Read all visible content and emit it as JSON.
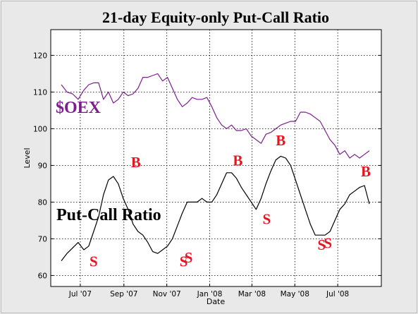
{
  "chart_data": {
    "type": "line",
    "title": "21-day Equity-only Put-Call Ratio",
    "xlabel": "Date",
    "ylabel": "Level",
    "ylim": [
      57,
      127
    ],
    "x_ticks": [
      "Jul '07",
      "Sep '07",
      "Nov '07",
      "Jan '08",
      "Mar '08",
      "May '08",
      "Jul '08"
    ],
    "y_ticks": [
      60,
      70,
      80,
      90,
      100,
      110,
      120
    ],
    "grid": true,
    "colors": {
      "oex": "#7b1f8c",
      "pcr": "#000000",
      "signal": "#e8141e",
      "background": "#e9e9e9",
      "plot": "#ffffff"
    },
    "series": [
      {
        "name": "$OEX",
        "key": "oex",
        "x": [
          "2007-06-04",
          "2007-06-12",
          "2007-06-20",
          "2007-06-28",
          "2007-07-06",
          "2007-07-13",
          "2007-07-20",
          "2007-07-27",
          "2007-08-03",
          "2007-08-10",
          "2007-08-17",
          "2007-08-24",
          "2007-08-31",
          "2007-09-07",
          "2007-09-14",
          "2007-09-21",
          "2007-09-28",
          "2007-10-05",
          "2007-10-12",
          "2007-10-19",
          "2007-10-26",
          "2007-11-02",
          "2007-11-09",
          "2007-11-16",
          "2007-11-23",
          "2007-11-30",
          "2007-12-07",
          "2007-12-14",
          "2007-12-21",
          "2007-12-28",
          "2008-01-04",
          "2008-01-11",
          "2008-01-18",
          "2008-01-25",
          "2008-02-01",
          "2008-02-08",
          "2008-02-15",
          "2008-02-22",
          "2008-02-29",
          "2008-03-07",
          "2008-03-14",
          "2008-03-21",
          "2008-03-28",
          "2008-04-04",
          "2008-04-11",
          "2008-04-18",
          "2008-04-25",
          "2008-05-02",
          "2008-05-09",
          "2008-05-16",
          "2008-05-23",
          "2008-05-30",
          "2008-06-06",
          "2008-06-13",
          "2008-06-20",
          "2008-06-27",
          "2008-07-04",
          "2008-07-11",
          "2008-07-18",
          "2008-07-25",
          "2008-08-01",
          "2008-08-08",
          "2008-08-15"
        ],
        "values": [
          112,
          110,
          109.5,
          108,
          110.5,
          112,
          112.5,
          112.5,
          108,
          110,
          107,
          108,
          110,
          109,
          109.5,
          111,
          114,
          114,
          114.5,
          115,
          113,
          114,
          111,
          108,
          106,
          107,
          108.5,
          108,
          108,
          108.5,
          106,
          103,
          101,
          100,
          101,
          99.5,
          99.5,
          100,
          98,
          97,
          96,
          98.5,
          99,
          100,
          101,
          101.5,
          102,
          102,
          104.5,
          104.5,
          104,
          103,
          102,
          99.5,
          97,
          95.5,
          93,
          94,
          92,
          93,
          92,
          93,
          94
        ]
      },
      {
        "name": "Put-Call Ratio",
        "key": "pcr",
        "x": [
          "2007-06-04",
          "2007-06-12",
          "2007-06-20",
          "2007-06-28",
          "2007-07-06",
          "2007-07-13",
          "2007-07-20",
          "2007-07-27",
          "2007-08-03",
          "2007-08-10",
          "2007-08-17",
          "2007-08-24",
          "2007-08-31",
          "2007-09-07",
          "2007-09-14",
          "2007-09-21",
          "2007-09-28",
          "2007-10-05",
          "2007-10-12",
          "2007-10-19",
          "2007-10-26",
          "2007-11-02",
          "2007-11-09",
          "2007-11-16",
          "2007-11-23",
          "2007-11-30",
          "2007-12-07",
          "2007-12-14",
          "2007-12-21",
          "2007-12-28",
          "2008-01-04",
          "2008-01-11",
          "2008-01-18",
          "2008-01-25",
          "2008-02-01",
          "2008-02-08",
          "2008-02-15",
          "2008-02-22",
          "2008-02-29",
          "2008-03-07",
          "2008-03-14",
          "2008-03-21",
          "2008-03-28",
          "2008-04-04",
          "2008-04-11",
          "2008-04-18",
          "2008-04-25",
          "2008-05-02",
          "2008-05-09",
          "2008-05-16",
          "2008-05-23",
          "2008-05-30",
          "2008-06-06",
          "2008-06-13",
          "2008-06-20",
          "2008-06-27",
          "2008-07-04",
          "2008-07-11",
          "2008-07-18",
          "2008-07-25",
          "2008-08-01",
          "2008-08-08",
          "2008-08-15"
        ],
        "values": [
          64,
          66,
          67.5,
          69,
          67,
          68,
          72,
          76,
          82,
          86,
          87,
          85,
          81,
          78,
          74,
          72,
          71,
          69,
          66.5,
          66,
          67,
          68,
          70,
          73.5,
          77,
          80,
          80,
          80,
          81,
          80,
          80,
          82,
          85,
          88,
          88,
          86.5,
          84,
          82,
          80,
          78,
          81,
          85,
          88.5,
          91.5,
          92.5,
          92,
          90,
          86,
          82,
          78,
          74,
          71,
          71,
          71,
          72,
          75,
          78,
          79.5,
          82,
          83,
          84,
          84.5,
          79.5
        ]
      }
    ],
    "series_labels": {
      "oex": "$OEX",
      "pcr": "Put-Call Ratio"
    },
    "signals": [
      {
        "label": "S",
        "date": "2007-07-20",
        "value": 62.5
      },
      {
        "label": "B",
        "date": "2007-09-18",
        "value": 89.5
      },
      {
        "label": "S",
        "date": "2007-11-25",
        "value": 62.5
      },
      {
        "label": "S",
        "date": "2007-12-02",
        "value": 63.5
      },
      {
        "label": "B",
        "date": "2008-02-10",
        "value": 90.0
      },
      {
        "label": "S",
        "date": "2008-03-22",
        "value": 74.0
      },
      {
        "label": "B",
        "date": "2008-04-11",
        "value": 95.5
      },
      {
        "label": "S",
        "date": "2008-06-08",
        "value": 67.0
      },
      {
        "label": "S",
        "date": "2008-06-17",
        "value": 67.5
      },
      {
        "label": "B",
        "date": "2008-08-10",
        "value": 87.0
      }
    ]
  }
}
